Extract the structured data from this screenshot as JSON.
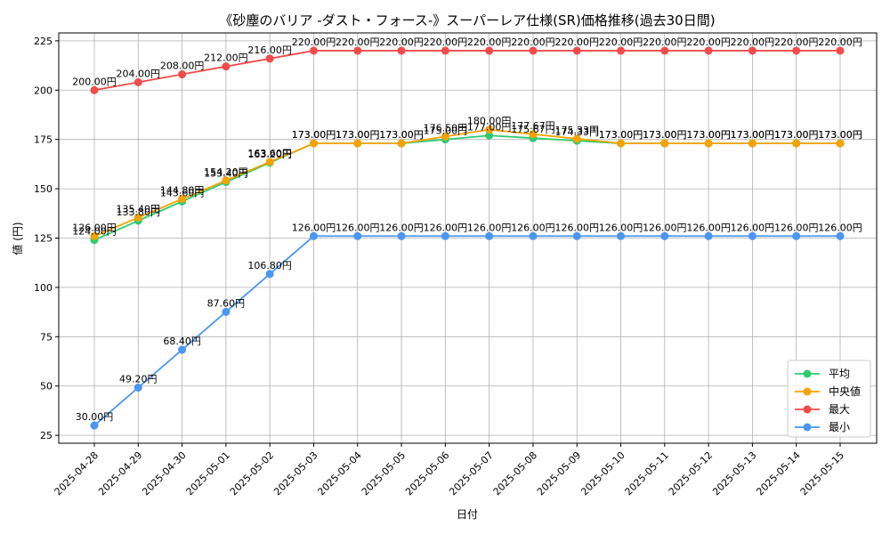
{
  "chart_data": {
    "type": "line",
    "title": "《砂塵のバリア -ダスト・フォース-》スーパーレア仕様(SR)価格推移(過去30日間)",
    "xlabel": "日付",
    "ylabel": "値 (円)",
    "ylim": [
      21,
      229
    ],
    "yticks": [
      25,
      50,
      75,
      100,
      125,
      150,
      175,
      200,
      225
    ],
    "grid": true,
    "legend_position": "bottom-right",
    "value_suffix": "円",
    "categories": [
      "2025-04-28",
      "2025-04-29",
      "2025-04-30",
      "2025-05-01",
      "2025-05-02",
      "2025-05-03",
      "2025-05-04",
      "2025-05-05",
      "2025-05-06",
      "2025-05-07",
      "2025-05-08",
      "2025-05-09",
      "2025-05-10",
      "2025-05-11",
      "2025-05-12",
      "2025-05-13",
      "2025-05-14",
      "2025-05-15"
    ],
    "series": [
      {
        "name": "平均",
        "color": "#2ecc71",
        "values": [
          124.0,
          133.8,
          143.6,
          153.4,
          163.2,
          173.0,
          173.0,
          173.0,
          175.0,
          177.0,
          175.67,
          174.33,
          173.0,
          173.0,
          173.0,
          173.0,
          173.0,
          173.0
        ]
      },
      {
        "name": "中央値",
        "color": "#f5a300",
        "values": [
          126.0,
          135.4,
          144.8,
          154.2,
          163.6,
          173.0,
          173.0,
          173.0,
          176.5,
          180.0,
          177.67,
          175.33,
          173.0,
          173.0,
          173.0,
          173.0,
          173.0,
          173.0
        ]
      },
      {
        "name": "最大",
        "color": "#f24b4b",
        "values": [
          200.0,
          204.0,
          208.0,
          212.0,
          216.0,
          220.0,
          220.0,
          220.0,
          220.0,
          220.0,
          220.0,
          220.0,
          220.0,
          220.0,
          220.0,
          220.0,
          220.0,
          220.0
        ]
      },
      {
        "name": "最小",
        "color": "#4a96f0",
        "values": [
          30.0,
          49.2,
          68.4,
          87.6,
          106.8,
          126.0,
          126.0,
          126.0,
          126.0,
          126.0,
          126.0,
          126.0,
          126.0,
          126.0,
          126.0,
          126.0,
          126.0,
          126.0
        ]
      }
    ]
  }
}
